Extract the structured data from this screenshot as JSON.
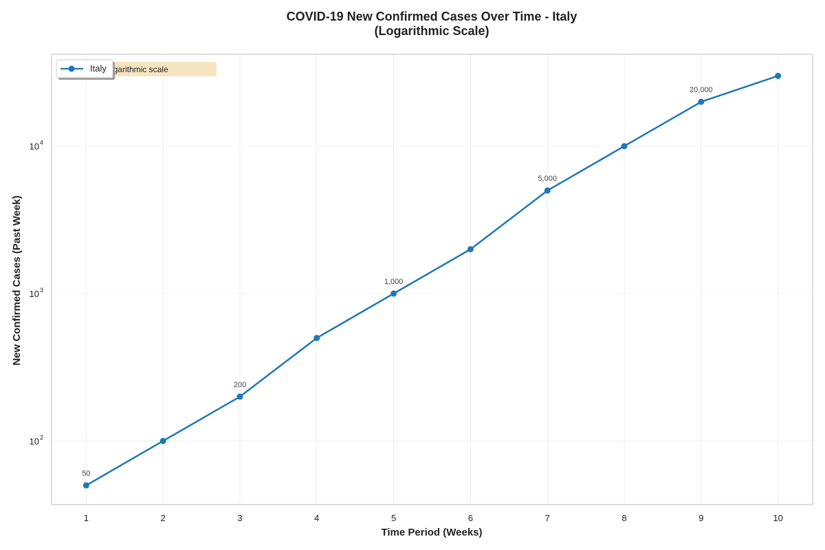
{
  "chart_data": {
    "type": "line",
    "title": [
      "COVID-19 New Confirmed Cases Over Time - Italy",
      "(Logarithmic Scale)"
    ],
    "xlabel": "Time Period (Weeks)",
    "ylabel": "New Confirmed Cases (Past Week)",
    "x": [
      1,
      2,
      3,
      4,
      5,
      6,
      7,
      8,
      9,
      10
    ],
    "x_ticks": [
      "1",
      "2",
      "3",
      "4",
      "5",
      "6",
      "7",
      "8",
      "9",
      "10"
    ],
    "y_scale": "log",
    "y_ticks": [
      {
        "value": 100,
        "base": "10",
        "exp": "2"
      },
      {
        "value": 1000,
        "base": "10",
        "exp": "3"
      },
      {
        "value": 10000,
        "base": "10",
        "exp": "4"
      }
    ],
    "xlim": [
      0.55,
      10.45
    ],
    "ylim": [
      37,
      42000
    ],
    "series": [
      {
        "name": "Italy",
        "color": "#1f77b4",
        "values": [
          50,
          100,
          200,
          500,
          1000,
          2000,
          5000,
          10000,
          20000,
          30000
        ]
      }
    ],
    "data_labels": [
      {
        "x": 1,
        "value": 50,
        "text": "50"
      },
      {
        "x": 3,
        "value": 200,
        "text": "200"
      },
      {
        "x": 5,
        "value": 1000,
        "text": "1,000"
      },
      {
        "x": 7,
        "value": 5000,
        "text": "5,000"
      },
      {
        "x": 9,
        "value": 20000,
        "text": "20,000"
      }
    ],
    "annotation": "Y-axis uses logarithmic scale",
    "grid": true,
    "legend_position": "top-left"
  }
}
